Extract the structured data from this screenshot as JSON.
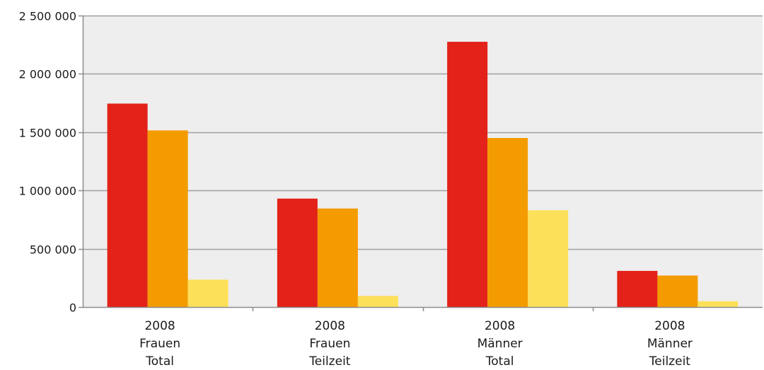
{
  "chart_data": {
    "type": "bar",
    "categories": [
      [
        "2008",
        "Frauen",
        "Total"
      ],
      [
        "2008",
        "Frauen",
        "Teilzeit"
      ],
      [
        "2008",
        "Männer",
        "Total"
      ],
      [
        "2008",
        "Männer",
        "Teilzeit"
      ]
    ],
    "series": [
      {
        "values": [
          1745000,
          930000,
          2275000,
          310000
        ],
        "color": "#e32219"
      },
      {
        "values": [
          1515000,
          845000,
          1450000,
          270000
        ],
        "color": "#f49b00"
      },
      {
        "values": [
          235000,
          95000,
          830000,
          50000
        ],
        "color": "#fde05a"
      }
    ],
    "ylim": [
      0,
      2500000
    ],
    "yticks": [
      0,
      500000,
      1000000,
      1500000,
      2000000,
      2500000
    ],
    "ytick_labels": [
      "0",
      "500 000",
      "1 000 000",
      "1 500 000",
      "2 000 000",
      "2 500 000"
    ],
    "grid": true,
    "plot_background": "#eeeeee",
    "gridline_color": "#a0a0a0",
    "title": "",
    "xlabel": "",
    "ylabel": ""
  }
}
